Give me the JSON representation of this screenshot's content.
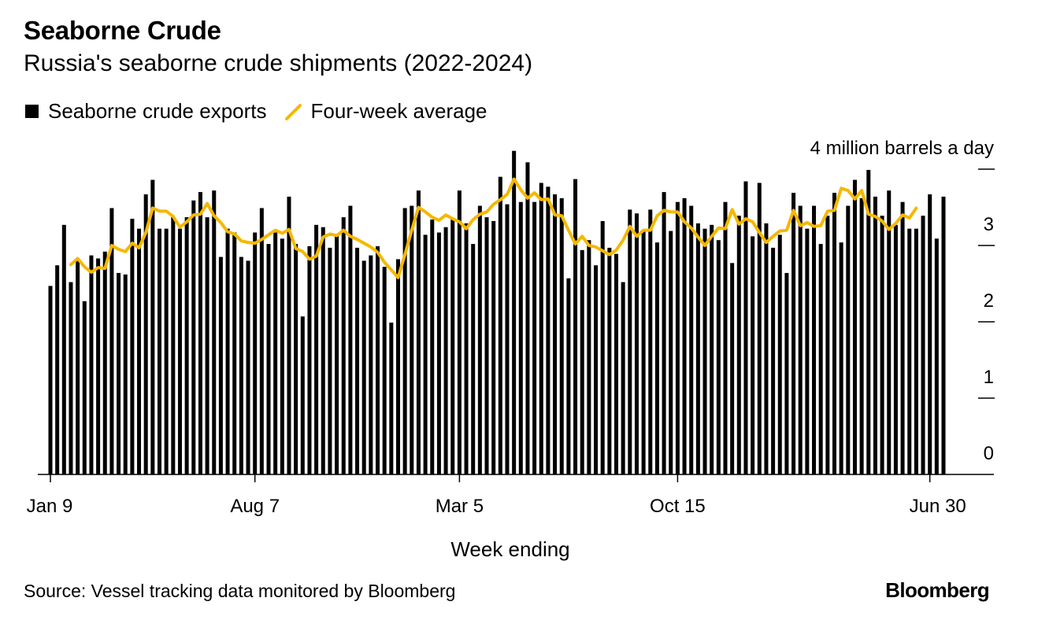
{
  "header": {
    "title": "Seaborne Crude",
    "subtitle": "Russia's seaborne crude shipments (2022-2024)"
  },
  "footer": {
    "source": "Source: Vessel tracking data monitored by Bloomberg",
    "brand": "Bloomberg"
  },
  "colors": {
    "bars": "#000000",
    "line": "#f5b800"
  },
  "chart_data": {
    "type": "bar",
    "title": "Seaborne Crude",
    "subtitle": "Russia's seaborne crude shipments (2022-2024)",
    "xlabel": "Week ending",
    "ylabel": "4 million barrels a day",
    "ylim": [
      0,
      4
    ],
    "yticks": [
      0,
      1,
      2,
      3,
      4
    ],
    "ytick_labels": [
      "0",
      "1",
      "2",
      "3",
      "4 million barrels a day"
    ],
    "xtick_labels": [
      "Jan 9",
      "Aug 7",
      "Mar 5",
      "Oct 15",
      "Jun 30"
    ],
    "xtick_indices": [
      0,
      30,
      60,
      92,
      129
    ],
    "legend_position": "top-left",
    "grid": false,
    "series": [
      {
        "name": "Seaborne crude exports",
        "type": "bar",
        "values": [
          2.47,
          2.74,
          3.27,
          2.52,
          2.8,
          2.27,
          2.87,
          2.83,
          2.92,
          3.49,
          2.64,
          2.62,
          3.35,
          3.22,
          3.67,
          3.86,
          3.22,
          3.22,
          3.37,
          3.22,
          3.37,
          3.59,
          3.7,
          3.37,
          3.72,
          2.85,
          3.22,
          3.17,
          2.85,
          2.8,
          3.17,
          3.49,
          3.02,
          3.17,
          3.09,
          3.64,
          3.02,
          2.07,
          2.99,
          3.27,
          3.24,
          2.97,
          3.14,
          3.37,
          3.52,
          2.97,
          2.8,
          2.87,
          2.99,
          2.72,
          1.99,
          2.82,
          3.49,
          3.52,
          3.72,
          3.14,
          3.34,
          3.17,
          3.24,
          3.34,
          3.72,
          3.29,
          3.02,
          3.52,
          3.37,
          3.32,
          3.9,
          3.54,
          4.24,
          3.57,
          4.09,
          3.57,
          3.82,
          3.77,
          3.67,
          3.62,
          2.57,
          3.87,
          2.94,
          3.07,
          2.74,
          3.32,
          2.97,
          2.89,
          2.52,
          3.47,
          3.42,
          3.19,
          3.47,
          3.04,
          3.7,
          3.19,
          3.57,
          3.62,
          3.52,
          3.29,
          3.22,
          3.27,
          3.07,
          3.57,
          2.77,
          3.39,
          3.84,
          3.12,
          3.82,
          3.29,
          2.97,
          3.14,
          2.64,
          3.69,
          3.52,
          3.22,
          3.52,
          3.02,
          3.39,
          3.69,
          3.04,
          3.52,
          3.86,
          3.62,
          3.99,
          3.64,
          3.39,
          3.72,
          3.27,
          3.57,
          3.22,
          3.22,
          3.39,
          3.67,
          3.09,
          3.64
        ]
      },
      {
        "name": "Four-week average",
        "type": "line",
        "start_index": 3,
        "values": [
          2.75,
          2.83,
          2.72,
          2.65,
          2.71,
          2.7,
          3.0,
          2.95,
          2.92,
          3.03,
          2.97,
          3.17,
          3.49,
          3.45,
          3.45,
          3.38,
          3.24,
          3.31,
          3.4,
          3.41,
          3.55,
          3.39,
          3.3,
          3.18,
          3.15,
          3.06,
          3.04,
          3.03,
          3.08,
          3.14,
          3.2,
          3.16,
          3.21,
          2.96,
          2.92,
          2.82,
          2.86,
          3.11,
          3.15,
          3.13,
          3.2,
          3.12,
          3.08,
          3.03,
          2.98,
          2.91,
          2.78,
          2.68,
          2.58,
          2.88,
          3.2,
          3.5,
          3.44,
          3.37,
          3.33,
          3.4,
          3.35,
          3.31,
          3.22,
          3.34,
          3.41,
          3.44,
          3.54,
          3.6,
          3.67,
          3.87,
          3.73,
          3.62,
          3.69,
          3.6,
          3.61,
          3.4,
          3.39,
          3.2,
          3.02,
          3.12,
          3.0,
          2.98,
          2.93,
          2.88,
          2.94,
          3.07,
          3.25,
          3.12,
          3.2,
          3.2,
          3.39,
          3.46,
          3.44,
          3.44,
          3.31,
          3.23,
          3.11,
          3.0,
          3.12,
          3.23,
          3.22,
          3.47,
          3.28,
          3.35,
          3.31,
          3.17,
          3.04,
          3.12,
          3.19,
          3.2,
          3.46,
          3.26,
          3.3,
          3.25,
          3.26,
          3.45,
          3.46,
          3.75,
          3.72,
          3.61,
          3.72,
          3.41,
          3.38,
          3.32,
          3.21,
          3.29,
          3.4,
          3.36,
          3.49
        ]
      }
    ]
  }
}
